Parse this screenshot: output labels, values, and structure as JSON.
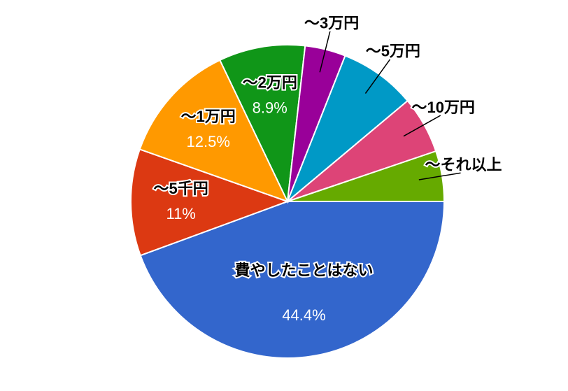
{
  "chart_data": {
    "type": "pie",
    "categories": [
      "費やしたことはない",
      "～5千円",
      "～1万円",
      "～2万円",
      "～3万円",
      "～5万円",
      "～10万円",
      "～それ以上"
    ],
    "values": [
      44.4,
      11,
      12.5,
      8.9,
      4.2,
      7.9,
      5.9,
      5.2
    ],
    "value_labels": [
      "44.4%",
      "11%",
      "12.5%",
      "8.9%",
      null,
      null,
      null,
      null
    ],
    "colors": [
      "#3366cc",
      "#dc3912",
      "#ff9900",
      "#109618",
      "#990099",
      "#0099c6",
      "#dd4477",
      "#66aa00"
    ]
  }
}
